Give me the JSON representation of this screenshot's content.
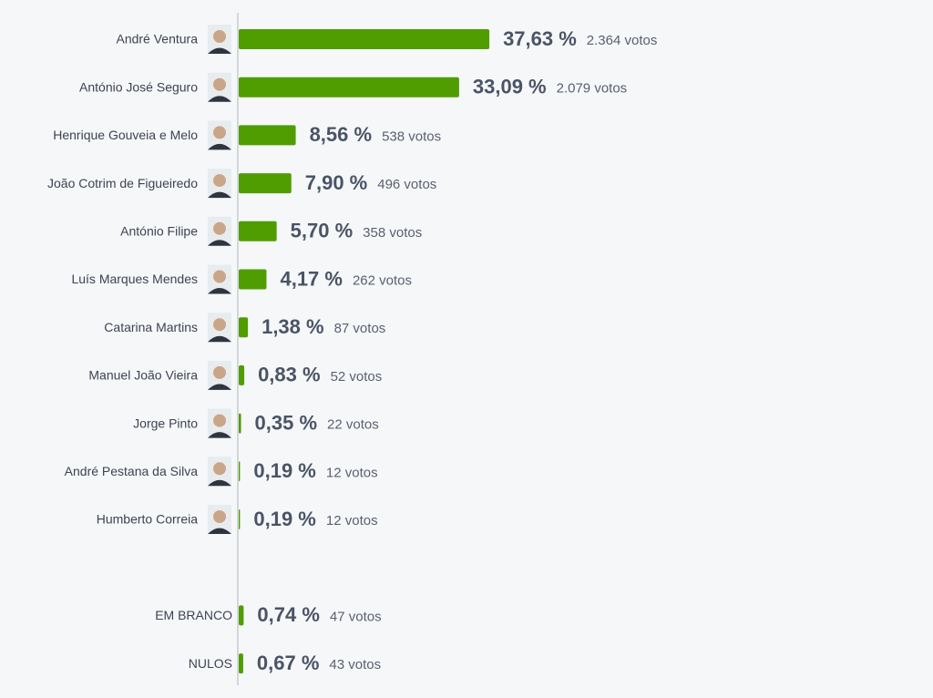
{
  "chart_data": [
    {
      "type": "bar",
      "color": "#4f9d00",
      "categories": [
        "André Ventura",
        "António José Seguro",
        "Henrique Gouveia e Melo",
        "João Cotrim de Figueiredo",
        "António Filipe",
        "Luís Marques Mendes",
        "Catarina Martins",
        "Manuel João Vieira",
        "Jorge Pinto",
        "André Pestana da Silva",
        "Humberto Correia"
      ],
      "values": [
        37.63,
        33.09,
        8.56,
        7.9,
        5.7,
        4.17,
        1.38,
        0.83,
        0.35,
        0.19,
        0.19
      ],
      "value_labels": [
        "37,63 %",
        "33,09 %",
        "8,56 %",
        "7,90 %",
        "5,70 %",
        "4,17 %",
        "1,38 %",
        "0,83 %",
        "0,35 %",
        "0,19 %",
        "0,19 %"
      ],
      "votes": [
        2364,
        2079,
        538,
        496,
        358,
        262,
        87,
        52,
        22,
        12,
        12
      ],
      "vote_labels": [
        "2.364 votos",
        "2.079 votos",
        "538 votos",
        "496 votos",
        "358 votos",
        "262 votos",
        "87 votos",
        "52 votos",
        "22 votos",
        "12 votos",
        "12 votos"
      ]
    },
    {
      "type": "bar",
      "color": "#4f9d00",
      "categories": [
        "EM BRANCO",
        "NULOS"
      ],
      "values": [
        0.74,
        0.67
      ],
      "value_labels": [
        "0,74 %",
        "0,67 %"
      ],
      "votes": [
        47,
        43
      ],
      "vote_labels": [
        "47 votos",
        "43 votos"
      ]
    }
  ]
}
